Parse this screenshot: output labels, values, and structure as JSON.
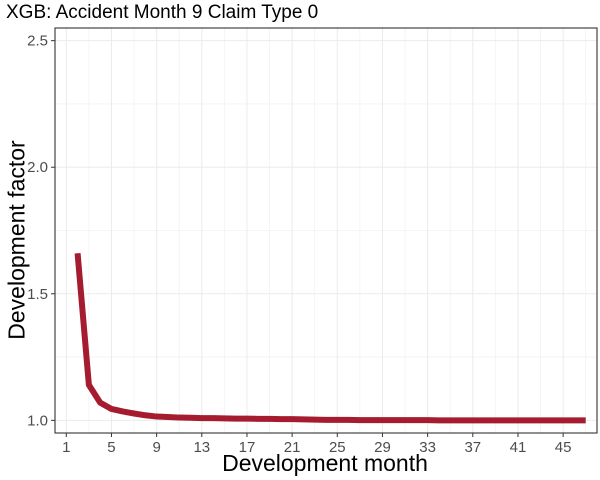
{
  "chart_data": {
    "type": "line",
    "title": "XGB: Accident Month 9 Claim Type 0",
    "xlabel": "Development month",
    "ylabel": "Development factor",
    "xlim": [
      0,
      48
    ],
    "ylim": [
      0.95,
      2.55
    ],
    "x_ticks": [
      1,
      5,
      9,
      13,
      17,
      21,
      25,
      29,
      33,
      37,
      41,
      45
    ],
    "y_ticks": [
      1.0,
      1.5,
      2.0,
      2.5
    ],
    "y_tick_labels": [
      "1.0",
      "1.5",
      "2.0",
      "2.5"
    ],
    "grid": true,
    "series": [
      {
        "name": "Development factor",
        "color": "#A51C30",
        "x": [
          2,
          3,
          4,
          5,
          6,
          7,
          8,
          9,
          10,
          11,
          12,
          13,
          14,
          15,
          16,
          17,
          18,
          19,
          20,
          21,
          22,
          23,
          24,
          25,
          26,
          27,
          28,
          29,
          30,
          31,
          32,
          33,
          34,
          35,
          36,
          37,
          38,
          39,
          40,
          41,
          42,
          43,
          44,
          45,
          46,
          47
        ],
        "values": [
          1.66,
          1.14,
          1.07,
          1.045,
          1.035,
          1.027,
          1.02,
          1.015,
          1.013,
          1.011,
          1.01,
          1.009,
          1.009,
          1.008,
          1.007,
          1.007,
          1.006,
          1.006,
          1.005,
          1.005,
          1.004,
          1.003,
          1.002,
          1.002,
          1.002,
          1.001,
          1.001,
          1.001,
          1.001,
          1.001,
          1.001,
          1.001,
          1.0,
          1.0,
          1.0,
          1.0,
          1.0,
          1.0,
          1.0,
          1.0,
          1.0,
          1.0,
          1.0,
          1.0,
          1.0,
          1.0
        ]
      }
    ]
  }
}
